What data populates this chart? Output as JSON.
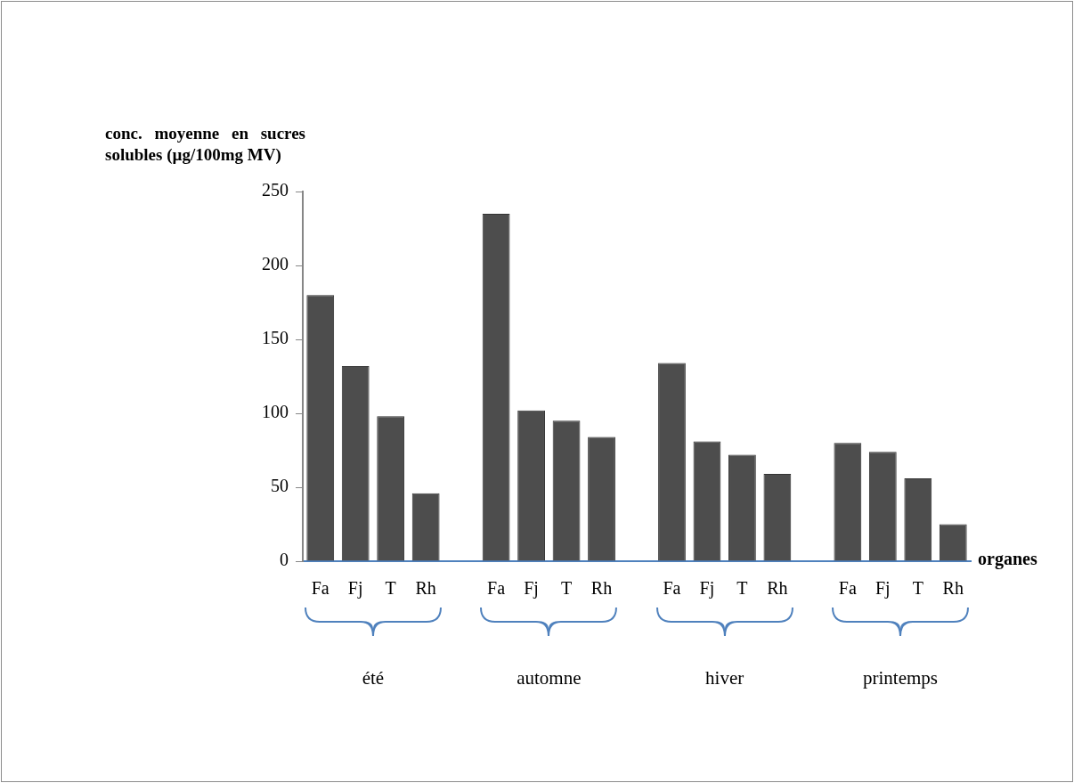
{
  "chart_data": {
    "type": "bar",
    "ylabel": "conc. moyenne en sucres solubles (µg/100mg MV)",
    "xlabel": "organes",
    "categories": [
      "Fa",
      "Fj",
      "T",
      "Rh",
      null,
      "Fa",
      "Fj",
      "T",
      "Rh",
      null,
      "Fa",
      "Fj",
      "T",
      "Rh",
      null,
      "Fa",
      "Fj",
      "T",
      "Rh"
    ],
    "values": [
      180,
      132,
      98,
      46,
      null,
      235,
      102,
      95,
      84,
      null,
      134,
      81,
      72,
      59,
      null,
      80,
      74,
      56,
      25
    ],
    "color": "#4d4d4d",
    "ylim": [
      0,
      250
    ],
    "yticks": [
      0,
      50,
      100,
      150,
      200,
      250
    ],
    "grid": false,
    "legend": false,
    "annotations": [
      "été",
      "automne",
      "hiver",
      "printemps"
    ]
  }
}
